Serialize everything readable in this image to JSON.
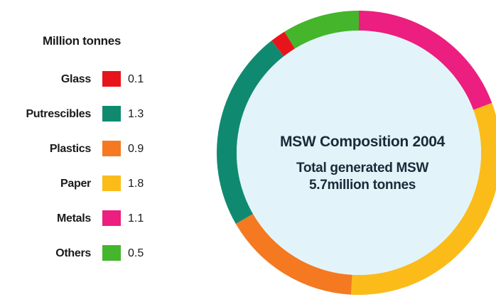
{
  "chart_data": {
    "type": "pie",
    "variant": "donut",
    "legend_title": "Million tonnes",
    "center_title": "MSW Composition 2004",
    "center_subtitle_line1": "Total generated MSW",
    "center_subtitle_line2": "5.7million tonnes",
    "slices": [
      {
        "label": "Glass",
        "value": 0.1,
        "value_text": "0.1",
        "color": "#e8141b"
      },
      {
        "label": "Putrescibles",
        "value": 1.3,
        "value_text": "1.3",
        "color": "#0f8a70"
      },
      {
        "label": "Plastics",
        "value": 0.9,
        "value_text": "0.9",
        "color": "#f47920"
      },
      {
        "label": "Paper",
        "value": 1.8,
        "value_text": "1.8",
        "color": "#fbbc1a"
      },
      {
        "label": "Metals",
        "value": 1.1,
        "value_text": "1.1",
        "color": "#ec1e7f"
      },
      {
        "label": "Others",
        "value": 0.5,
        "value_text": "0.5",
        "color": "#45b52b"
      }
    ],
    "center_fill": "#e2f4f9",
    "legend_position": "left"
  }
}
